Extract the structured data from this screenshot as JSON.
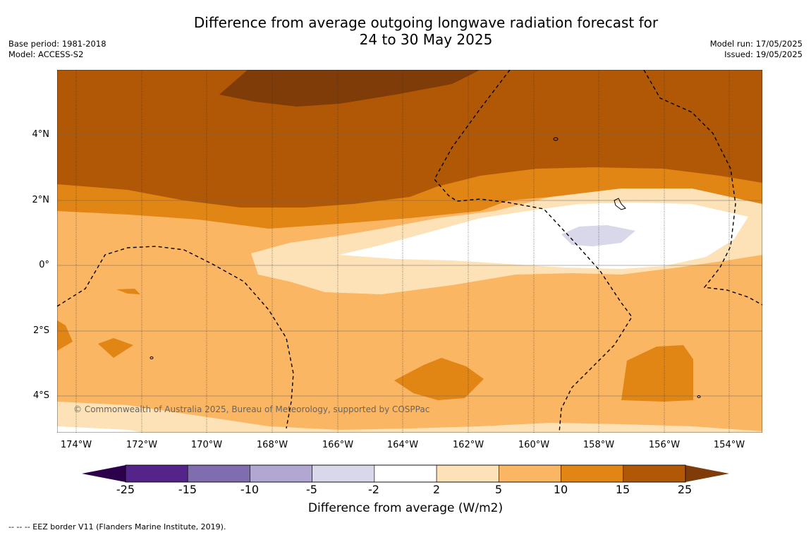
{
  "title_line1": "Difference from average outgoing longwave radiation forecast for",
  "title_line2": "24 to 30 May 2025",
  "meta_left": [
    "Base period: 1981-2018",
    "Model: ACCESS-S2"
  ],
  "meta_right": [
    "Model run: 17/05/2025",
    "Issued: 19/05/2025"
  ],
  "lat_labels": [
    "4°N",
    "2°N",
    "0°",
    "2°S",
    "4°S"
  ],
  "lon_labels": [
    "174°W",
    "172°W",
    "170°W",
    "168°W",
    "166°W",
    "164°W",
    "162°W",
    "160°W",
    "158°W",
    "156°W",
    "154°W"
  ],
  "copyright": "© Commonwealth of Australia 2025, Bureau of Meteorology, supported by COSPPac",
  "colorbar": {
    "label": "Difference from average (W/m2)",
    "ticks": [
      "-25",
      "-15",
      "-10",
      "-5",
      "-2",
      "2",
      "5",
      "10",
      "15",
      "25"
    ],
    "colors": [
      "#55248a",
      "#7f6daf",
      "#b1a7d2",
      "#d8d8ea",
      "#ffffff",
      "#fee2b7",
      "#fbb664",
      "#e18515",
      "#b15806"
    ],
    "under_color": "#2d004b",
    "over_color": "#7f3b08"
  },
  "footer": "-- -- -- EEZ border V11 (Flanders Marine Institute, 2019).",
  "map_colors": {
    "c15_25": "#b15806",
    "c25": "#7f3b08",
    "c10_15": "#e18515",
    "c5_10": "#fbb664",
    "c2_5": "#fee2b7",
    "cm2_2": "#ffffff",
    "cm5_m2": "#d8d8ea",
    "cm10_m5": "#b1a7d2",
    "cm15_m10": "#7f6daf"
  }
}
